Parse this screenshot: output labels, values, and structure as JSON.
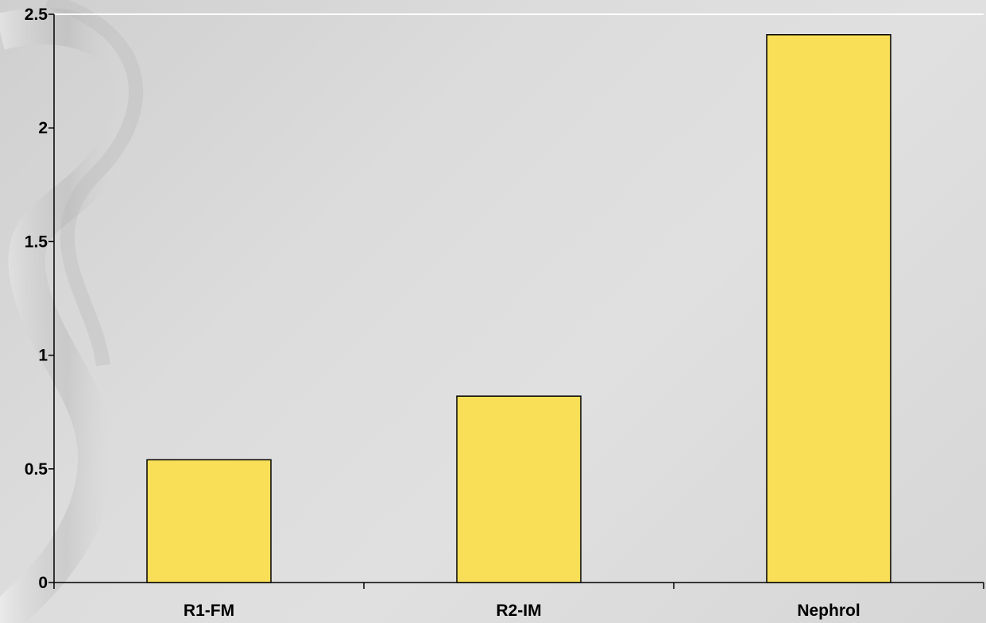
{
  "chart_data": {
    "type": "bar",
    "title": "",
    "xlabel": "",
    "ylabel": "",
    "categories": [
      "R1-FM",
      "R2-IM",
      "Nephrol"
    ],
    "values": [
      0.54,
      0.82,
      2.41
    ],
    "ylim": [
      0,
      2.5
    ],
    "yticks": [
      0,
      0.5,
      1,
      1.5,
      2,
      2.5
    ],
    "ytick_labels": [
      "0",
      "0.5",
      "1",
      "1.5",
      "2",
      "2.5"
    ],
    "bar_color": "#f9df57",
    "bar_edge_color": "#000000",
    "grid": false,
    "legend": "none"
  }
}
